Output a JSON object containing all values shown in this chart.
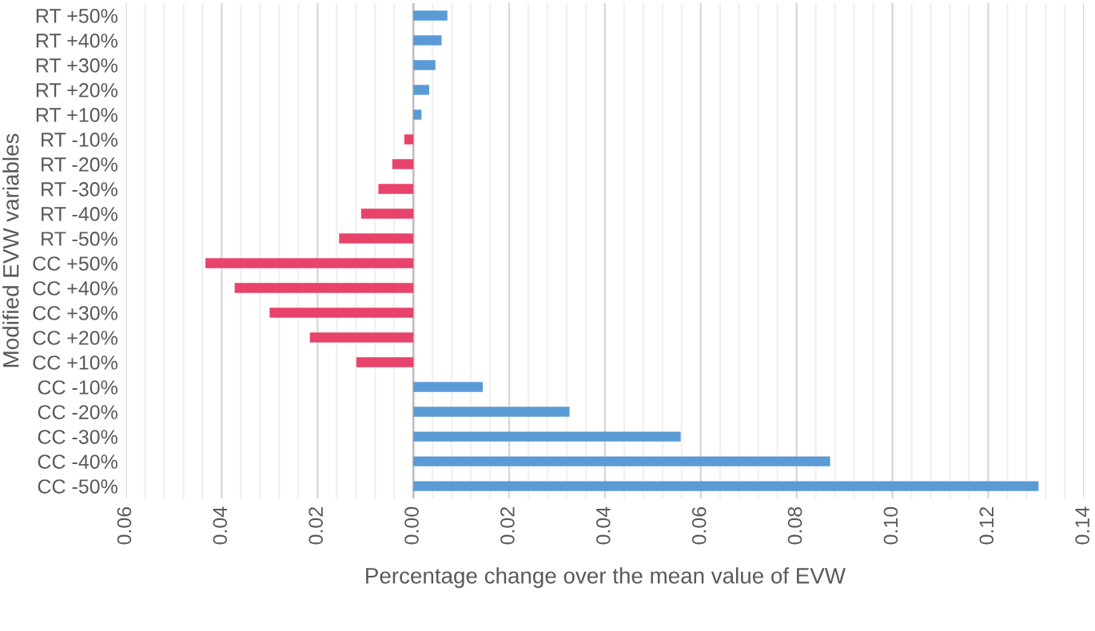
{
  "chart_data": {
    "type": "bar",
    "orientation": "horizontal",
    "xlabel": "Percentage change over the mean value of EVW",
    "ylabel": "Modified EVW variables",
    "categories": [
      "RT +50%",
      "RT +40%",
      "RT +30%",
      "RT +20%",
      "RT +10%",
      "RT -10%",
      "RT -20%",
      "RT -30%",
      "RT -40%",
      "RT -50%",
      "CC +50%",
      "CC +40%",
      "CC +30%",
      "CC +20%",
      "CC +10%",
      "CC -10%",
      "CC -20%",
      "CC -30%",
      "CC -40%",
      "CC -50%"
    ],
    "values": [
      0.0071,
      0.0059,
      0.0046,
      0.0033,
      0.0017,
      -0.0019,
      -0.0044,
      -0.0073,
      -0.0109,
      -0.0155,
      -0.0434,
      -0.0373,
      -0.03,
      -0.0216,
      -0.0119,
      0.0145,
      0.0326,
      0.0558,
      0.087,
      0.1305
    ],
    "colors": [
      "#5b9bd5",
      "#5b9bd5",
      "#5b9bd5",
      "#5b9bd5",
      "#5b9bd5",
      "#e8436b",
      "#e8436b",
      "#e8436b",
      "#e8436b",
      "#e8436b",
      "#e8436b",
      "#e8436b",
      "#e8436b",
      "#e8436b",
      "#e8436b",
      "#5b9bd5",
      "#5b9bd5",
      "#5b9bd5",
      "#5b9bd5",
      "#5b9bd5"
    ],
    "xlim": [
      -0.06,
      0.14
    ],
    "xticks": [
      {
        "value": -0.06,
        "label": "0.06"
      },
      {
        "value": -0.04,
        "label": "0.04"
      },
      {
        "value": -0.02,
        "label": "0.02"
      },
      {
        "value": 0,
        "label": "0.00"
      },
      {
        "value": 0.02,
        "label": "0.02"
      },
      {
        "value": 0.04,
        "label": "0.04"
      },
      {
        "value": 0.06,
        "label": "0.06"
      },
      {
        "value": 0.08,
        "label": "0.08"
      },
      {
        "value": 0.1,
        "label": "0.10"
      },
      {
        "value": 0.12,
        "label": "0.12"
      },
      {
        "value": 0.14,
        "label": "0.14"
      }
    ],
    "grid": "x"
  }
}
